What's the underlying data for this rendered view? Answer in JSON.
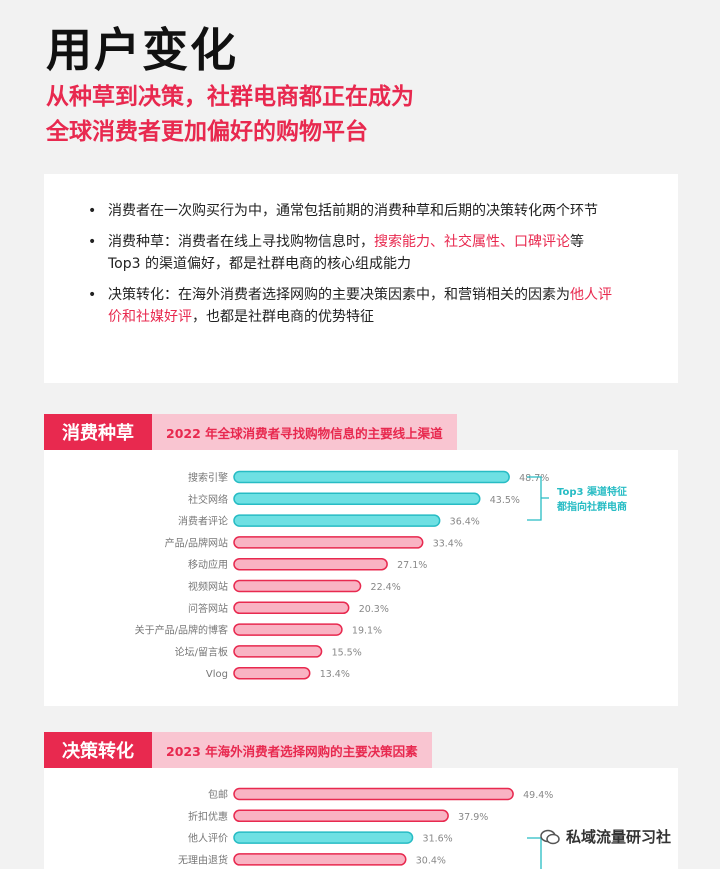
{
  "header": {
    "title": "用户变化",
    "subtitle_line1": "从种草到决策，社群电商都正在成为",
    "subtitle_line2": "全球消费者更加偏好的购物平台"
  },
  "summary": {
    "b1": "消费者在一次购买行为中，通常包括前期的消费种草和后期的决策转化两个环节",
    "b2_pre": "消费种草：消费者在线上寻找购物信息时，",
    "b2_hl": "搜索能力、社交属性、口碑评论",
    "b2_post": "等 Top3 的渠道偏好，都是社群电商的核心组成能力",
    "b3_pre": "决策转化：在海外消费者选择网购的主要决策因素中，和营销相关的因素为",
    "b3_hl": "他人评价和社媒好评",
    "b3_post": "，也都是社群电商的优势特征"
  },
  "section1": {
    "tag": "消费种草",
    "title": "2022 年全球消费者寻找购物信息的主要线上渠道",
    "bracket_line1": "Top3 渠道特征",
    "bracket_line2": "都指向社群电商"
  },
  "section2": {
    "tag": "决策转化",
    "title": "2023 年海外消费者选择网购的主要决策因素"
  },
  "colors": {
    "accent": "#e8294f",
    "pink_bar": "#f9b3c3",
    "teal_bar": "#6ee0e3",
    "teal_stroke": "#27bcc4"
  },
  "chart_data": [
    {
      "type": "bar",
      "orientation": "horizontal",
      "categories": [
        "搜索引擎",
        "社交网络",
        "消费者评论",
        "产品/品牌网站",
        "移动应用",
        "视频网站",
        "问答网站",
        "关于产品/品牌的博客",
        "论坛/留言板",
        "Vlog"
      ],
      "values": [
        48.7,
        43.5,
        36.4,
        33.4,
        27.1,
        22.4,
        20.3,
        19.1,
        15.5,
        13.4
      ],
      "labels": [
        "48.7%",
        "43.5%",
        "36.4%",
        "33.4%",
        "27.1%",
        "22.4%",
        "20.3%",
        "19.1%",
        "15.5%",
        "13.4%"
      ],
      "highlight": [
        true,
        true,
        true,
        false,
        false,
        false,
        false,
        false,
        false,
        false
      ],
      "unit": "%"
    },
    {
      "type": "bar",
      "orientation": "horizontal",
      "categories": [
        "包邮",
        "折扣优惠",
        "他人评价",
        "无理由退货"
      ],
      "values": [
        49.4,
        37.9,
        31.6,
        30.4
      ],
      "labels": [
        "49.4%",
        "37.9%",
        "31.6%",
        "30.4%"
      ],
      "highlight": [
        false,
        false,
        true,
        false
      ],
      "unit": "%"
    }
  ],
  "watermark": {
    "text": "私域流量研习社"
  }
}
